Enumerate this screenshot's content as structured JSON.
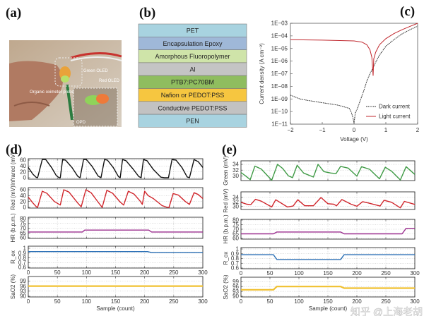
{
  "panel_labels": {
    "a": "(a)",
    "b": "(b)",
    "c": "(c)",
    "d": "(d)",
    "e": "(e)"
  },
  "photo": {
    "labels": {
      "green": "Green OLED",
      "red": "Red OLED",
      "probe": "Organic oximeter probe",
      "opd": "OPD"
    }
  },
  "stack": {
    "layers": [
      {
        "name": "PET",
        "color": "#a8d3e0"
      },
      {
        "name": "Encapsulation Epoxy",
        "color": "#9fb8d8"
      },
      {
        "name": "Amorphous Fluoropolymer",
        "color": "#cfe4a9"
      },
      {
        "name": "Al",
        "color": "#c4c4c4"
      },
      {
        "name": "PTB7:PC70BM",
        "color": "#8fbd5f"
      },
      {
        "name": "Nafion or PEDOT:PSS",
        "color": "#f6c640"
      },
      {
        "name": "Conductive PEDOT:PSS",
        "color": "#c2c2c2"
      },
      {
        "name": "PEN",
        "color": "#a8d3e0"
      }
    ]
  },
  "chart_data": [
    {
      "id": "c",
      "type": "line",
      "xlabel": "Voltage (V)",
      "ylabel": "Current density (A cm⁻²)",
      "xlim": [
        -2,
        2
      ],
      "ylim": [
        1e-11,
        0.001
      ],
      "yscale": "log",
      "xticks": [
        {
          "v": -2,
          "t": "−2"
        },
        {
          "v": -1,
          "t": "−1"
        },
        {
          "v": 0,
          "t": "0"
        },
        {
          "v": 1,
          "t": "1"
        },
        {
          "v": 2,
          "t": "2"
        }
      ],
      "yticks": [
        {
          "v": 0.001,
          "t": "1E−03"
        },
        {
          "v": 0.0001,
          "t": "1E−04"
        },
        {
          "v": 1e-05,
          "t": "1E−05"
        },
        {
          "v": 1e-06,
          "t": "1E−06"
        },
        {
          "v": 1e-07,
          "t": "1E−07"
        },
        {
          "v": 1e-08,
          "t": "1E−08"
        },
        {
          "v": 1e-09,
          "t": "1E−09"
        },
        {
          "v": 1e-10,
          "t": "1E−10"
        },
        {
          "v": 1e-11,
          "t": "1E−11"
        }
      ],
      "legend_position": "bottom-right",
      "series": [
        {
          "name": "Dark current",
          "color": "#222222",
          "dash": true,
          "points": [
            [
              -2,
              2e-09
            ],
            [
              -1.7,
              1e-09
            ],
            [
              -1.5,
              8e-10
            ],
            [
              -1,
              5e-10
            ],
            [
              -0.5,
              3.2e-10
            ],
            [
              -0.15,
              1.8e-10
            ],
            [
              -0.08,
              8e-11
            ],
            [
              -0.03,
              3e-11
            ],
            [
              0,
              1.2e-11
            ],
            [
              0.04,
              8e-11
            ],
            [
              0.1,
              1.6e-10
            ],
            [
              0.2,
              8e-10
            ],
            [
              0.3,
              4e-09
            ],
            [
              0.4,
              2.5e-08
            ],
            [
              0.5,
              1e-07
            ],
            [
              0.6,
              3e-07
            ],
            [
              0.7,
              1e-06
            ],
            [
              0.8,
              3e-06
            ],
            [
              1,
              1.5e-05
            ],
            [
              1.25,
              5e-05
            ],
            [
              1.5,
              0.00014
            ],
            [
              1.75,
              0.0003
            ],
            [
              2,
              0.0006
            ]
          ]
        },
        {
          "name": "Light current",
          "color": "#c0272d",
          "dash": false,
          "points": [
            [
              -2,
              5e-05
            ],
            [
              -1,
              4.6e-05
            ],
            [
              0,
              4e-05
            ],
            [
              0.25,
              3.2e-05
            ],
            [
              0.4,
              2e-05
            ],
            [
              0.5,
              8e-06
            ],
            [
              0.56,
              2e-06
            ],
            [
              0.6,
              7e-08
            ],
            [
              0.62,
              1.5e-06
            ],
            [
              0.68,
              5e-06
            ],
            [
              0.8,
              2e-05
            ],
            [
              1,
              6e-05
            ],
            [
              1.25,
              0.00015
            ],
            [
              1.5,
              0.0003
            ],
            [
              1.75,
              0.00055
            ],
            [
              2,
              0.001
            ]
          ]
        }
      ]
    },
    {
      "id": "d",
      "type": "line",
      "xlabel": "Sample (count)",
      "xlim": [
        0,
        300
      ],
      "xticks": [
        "0",
        "50",
        "100",
        "150",
        "200",
        "250",
        "300"
      ],
      "subplots": [
        {
          "ylabel": "Infrared (mV)",
          "ylim": [
            0,
            60
          ],
          "yticks": [
            0,
            20,
            40,
            60
          ],
          "color": "#111111",
          "points": [
            [
              0,
              35
            ],
            [
              8,
              12
            ],
            [
              14,
              1
            ],
            [
              16,
              0
            ],
            [
              24,
              62
            ],
            [
              30,
              62
            ],
            [
              40,
              35
            ],
            [
              48,
              8
            ],
            [
              53,
              0
            ],
            [
              55,
              0
            ],
            [
              59,
              62
            ],
            [
              64,
              60
            ],
            [
              75,
              35
            ],
            [
              85,
              5
            ],
            [
              89,
              0
            ],
            [
              95,
              62
            ],
            [
              100,
              62
            ],
            [
              110,
              38
            ],
            [
              120,
              6
            ],
            [
              125,
              0
            ],
            [
              131,
              62
            ],
            [
              136,
              60
            ],
            [
              146,
              35
            ],
            [
              155,
              4
            ],
            [
              158,
              0
            ],
            [
              162,
              62
            ],
            [
              168,
              58
            ],
            [
              180,
              30
            ],
            [
              190,
              4
            ],
            [
              194,
              0
            ],
            [
              198,
              62
            ],
            [
              204,
              58
            ],
            [
              215,
              28
            ],
            [
              228,
              2
            ],
            [
              234,
              0
            ],
            [
              241,
              0
            ],
            [
              247,
              62
            ],
            [
              254,
              60
            ],
            [
              264,
              35
            ],
            [
              273,
              3
            ],
            [
              277,
              0
            ],
            [
              285,
              62
            ],
            [
              292,
              55
            ],
            [
              300,
              35
            ]
          ]
        },
        {
          "ylabel": "Red (mV)",
          "ylim": [
            0,
            60
          ],
          "yticks": [
            0,
            20,
            40,
            60
          ],
          "color": "#d0262c",
          "points": [
            [
              0,
              35
            ],
            [
              8,
              15
            ],
            [
              14,
              2
            ],
            [
              16,
              0
            ],
            [
              24,
              55
            ],
            [
              32,
              48
            ],
            [
              45,
              20
            ],
            [
              55,
              8
            ],
            [
              61,
              60
            ],
            [
              70,
              52
            ],
            [
              85,
              15
            ],
            [
              91,
              2
            ],
            [
              99,
              60
            ],
            [
              108,
              50
            ],
            [
              120,
              18
            ],
            [
              127,
              0
            ],
            [
              135,
              58
            ],
            [
              145,
              48
            ],
            [
              158,
              18
            ],
            [
              164,
              8
            ],
            [
              172,
              55
            ],
            [
              182,
              45
            ],
            [
              192,
              22
            ],
            [
              196,
              10
            ],
            [
              200,
              55
            ],
            [
              206,
              40
            ],
            [
              215,
              30
            ],
            [
              230,
              6
            ],
            [
              239,
              0
            ],
            [
              242,
              0
            ],
            [
              249,
              47
            ],
            [
              258,
              42
            ],
            [
              270,
              20
            ],
            [
              277,
              10
            ],
            [
              285,
              50
            ],
            [
              292,
              44
            ],
            [
              300,
              30
            ]
          ]
        },
        {
          "ylabel": "HR (b.p.m.)",
          "ylim": [
            60,
            80
          ],
          "yticks": [
            60,
            65,
            70,
            75,
            80
          ],
          "color": "#9b2f8f",
          "points": [
            [
              0,
              66
            ],
            [
              93,
              66
            ],
            [
              97,
              68
            ],
            [
              207,
              68
            ],
            [
              212,
              66
            ],
            [
              300,
              66
            ]
          ]
        },
        {
          "ylabel": "R_ox",
          "ylim": [
            0.6,
            1
          ],
          "yticks": [
            0.6,
            0.7,
            0.8,
            0.9,
            1
          ],
          "color": "#2a6fb5",
          "xaxis_labels": true,
          "points": [
            [
              0,
              0.93
            ],
            [
              205,
              0.93
            ],
            [
              212,
              0.91
            ],
            [
              300,
              0.91
            ]
          ]
        },
        {
          "ylabel": "SaO2 (%)",
          "ylim": [
            90,
            100
          ],
          "yticks": [
            90,
            93,
            96,
            99
          ],
          "color": "#f0c030",
          "xaxis_labels": true,
          "points": [
            [
              0,
              96
            ],
            [
              300,
              96
            ]
          ]
        }
      ]
    },
    {
      "id": "e",
      "type": "line",
      "xlabel": "Sample (count)",
      "xlim": [
        0,
        300
      ],
      "xticks": [
        "0",
        "50",
        "100",
        "150",
        "200",
        "250",
        "300"
      ],
      "subplots": [
        {
          "ylabel": "Green (mV)",
          "ylim": [
            28.5,
            34.5
          ],
          "yticks": [
            30,
            32,
            34
          ],
          "color": "#3f9a45",
          "points": [
            [
              0,
              31.2
            ],
            [
              8,
              30
            ],
            [
              16,
              28.7
            ],
            [
              24,
              33.4
            ],
            [
              35,
              32.4
            ],
            [
              53,
              28.5
            ],
            [
              63,
              34
            ],
            [
              72,
              32.6
            ],
            [
              82,
              30
            ],
            [
              89,
              29.4
            ],
            [
              97,
              33.7
            ],
            [
              108,
              31
            ],
            [
              125,
              29.6
            ],
            [
              133,
              34
            ],
            [
              143,
              31.5
            ],
            [
              155,
              31
            ],
            [
              164,
              30.8
            ],
            [
              172,
              33.3
            ],
            [
              185,
              32.7
            ],
            [
              200,
              29.9
            ],
            [
              208,
              33.2
            ],
            [
              222,
              32.3
            ],
            [
              239,
              29
            ],
            [
              249,
              33
            ],
            [
              260,
              31.6
            ],
            [
              275,
              28.6
            ],
            [
              285,
              33.2
            ],
            [
              300,
              30.5
            ]
          ]
        },
        {
          "ylabel": "Red (mV)",
          "ylim": [
            29,
            34.5
          ],
          "yticks": [
            30,
            32,
            34
          ],
          "color": "#d0262c",
          "points": [
            [
              0,
              31.8
            ],
            [
              10,
              31
            ],
            [
              17,
              30.8
            ],
            [
              25,
              33.1
            ],
            [
              35,
              32.3
            ],
            [
              53,
              29.8
            ],
            [
              60,
              32.9
            ],
            [
              80,
              29.8
            ],
            [
              90,
              30.2
            ],
            [
              98,
              32.9
            ],
            [
              110,
              30.3
            ],
            [
              125,
              30.3
            ],
            [
              138,
              33.9
            ],
            [
              150,
              31.2
            ],
            [
              160,
              31
            ],
            [
              165,
              30.3
            ],
            [
              174,
              33
            ],
            [
              190,
              31
            ],
            [
              200,
              30.1
            ],
            [
              210,
              32.1
            ],
            [
              220,
              31.5
            ],
            [
              240,
              30.2
            ],
            [
              247,
              32.7
            ],
            [
              260,
              31.8
            ],
            [
              275,
              29.4
            ],
            [
              282,
              32.2
            ],
            [
              300,
              30.9
            ]
          ]
        },
        {
          "ylabel": "HR (b.p.m.)",
          "ylim": [
            60,
            80
          ],
          "yticks": [
            60,
            65,
            70,
            75,
            80
          ],
          "color": "#9b2f8f",
          "points": [
            [
              0,
              65
            ],
            [
              56,
              65
            ],
            [
              62,
              67
            ],
            [
              172,
              67
            ],
            [
              178,
              65
            ],
            [
              278,
              65
            ],
            [
              285,
              71
            ],
            [
              300,
              71
            ]
          ]
        },
        {
          "ylabel": "R_ox",
          "ylim": [
            0.6,
            1
          ],
          "yticks": [
            0.6,
            0.7,
            0.8,
            0.9,
            1
          ],
          "color": "#2a6fb5",
          "xaxis_labels": true,
          "points": [
            [
              0,
              0.88
            ],
            [
              56,
              0.88
            ],
            [
              62,
              0.78
            ],
            [
              172,
              0.78
            ],
            [
              178,
              0.88
            ],
            [
              300,
              0.88
            ]
          ]
        },
        {
          "ylabel": "SaO2 (%)",
          "ylim": [
            90,
            100
          ],
          "yticks": [
            90,
            93,
            96,
            99
          ],
          "color": "#f0c030",
          "xaxis_labels": true,
          "points": [
            [
              0,
              94
            ],
            [
              56,
              94
            ],
            [
              62,
              96
            ],
            [
              172,
              96
            ],
            [
              178,
              95
            ],
            [
              300,
              95
            ]
          ]
        }
      ]
    }
  ],
  "watermark": "知乎 @上海老胡"
}
